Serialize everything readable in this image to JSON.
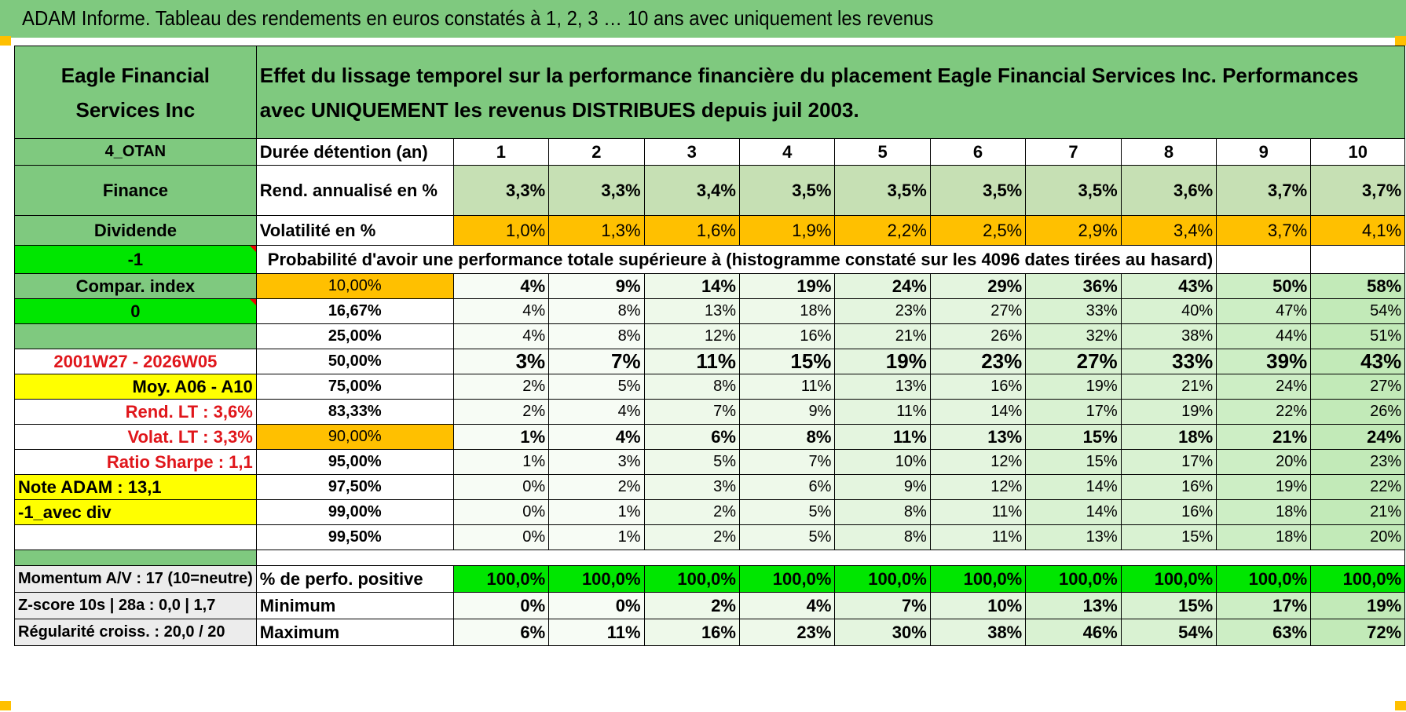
{
  "header": {
    "title": "ADAM Informe. Tableau des rendements en euros constatés à 1, 2, 3 … 10 ans avec uniquement les revenus"
  },
  "company": {
    "name": "Eagle Financial Services Inc"
  },
  "description": "Effet du lissage temporel sur la performance financière du placement Eagle Financial Services Inc. Performances avec UNIQUEMENT les revenus DISTRIBUES depuis juil 2003.",
  "side": {
    "code": "4_OTAN",
    "sector": "Finance",
    "type": "Dividende",
    "minus_one": "-1",
    "compar_index": "Compar. index",
    "zero": "0",
    "period": "2001W27 - 2026W05",
    "moy": "Moy. A06 - A10",
    "rend_lt": "Rend. LT :   3,6%",
    "volat_lt": "Volat. LT :   3,3%",
    "sharpe": "Ratio Sharpe :    1,1",
    "note": "Note ADAM : 13,1",
    "avec_div": "-1_avec div"
  },
  "rows": {
    "duree_label": "Durée détention (an)",
    "years": [
      "1",
      "2",
      "3",
      "4",
      "5",
      "6",
      "7",
      "8",
      "9",
      "10"
    ],
    "rend_label": "Rend. annualisé en %",
    "rend": [
      "3,3%",
      "3,3%",
      "3,4%",
      "3,5%",
      "3,5%",
      "3,5%",
      "3,5%",
      "3,6%",
      "3,7%",
      "3,7%"
    ],
    "vol_label": "Volatilité en %",
    "vol": [
      "1,0%",
      "1,3%",
      "1,6%",
      "1,9%",
      "2,2%",
      "2,5%",
      "2,9%",
      "3,4%",
      "3,7%",
      "4,1%"
    ],
    "prob_label": "Probabilité d'avoir une performance totale supérieure à (histogramme constaté sur les 4096 dates tirées au hasard)"
  },
  "prob": [
    {
      "pct": "10,00%",
      "v": [
        "4%",
        "9%",
        "14%",
        "19%",
        "24%",
        "29%",
        "36%",
        "43%",
        "50%",
        "58%"
      ]
    },
    {
      "pct": "16,67%",
      "v": [
        "4%",
        "8%",
        "13%",
        "18%",
        "23%",
        "27%",
        "33%",
        "40%",
        "47%",
        "54%"
      ]
    },
    {
      "pct": "25,00%",
      "v": [
        "4%",
        "8%",
        "12%",
        "16%",
        "21%",
        "26%",
        "32%",
        "38%",
        "44%",
        "51%"
      ]
    },
    {
      "pct": "50,00%",
      "v": [
        "3%",
        "7%",
        "11%",
        "15%",
        "19%",
        "23%",
        "27%",
        "33%",
        "39%",
        "43%"
      ]
    },
    {
      "pct": "75,00%",
      "v": [
        "2%",
        "5%",
        "8%",
        "11%",
        "13%",
        "16%",
        "19%",
        "21%",
        "24%",
        "27%"
      ]
    },
    {
      "pct": "83,33%",
      "v": [
        "2%",
        "4%",
        "7%",
        "9%",
        "11%",
        "14%",
        "17%",
        "19%",
        "22%",
        "26%"
      ]
    },
    {
      "pct": "90,00%",
      "v": [
        "1%",
        "4%",
        "6%",
        "8%",
        "11%",
        "13%",
        "15%",
        "18%",
        "21%",
        "24%"
      ]
    },
    {
      "pct": "95,00%",
      "v": [
        "1%",
        "3%",
        "5%",
        "7%",
        "10%",
        "12%",
        "15%",
        "17%",
        "20%",
        "23%"
      ]
    },
    {
      "pct": "97,50%",
      "v": [
        "0%",
        "2%",
        "3%",
        "6%",
        "9%",
        "12%",
        "14%",
        "16%",
        "19%",
        "22%"
      ]
    },
    {
      "pct": "99,00%",
      "v": [
        "0%",
        "1%",
        "2%",
        "5%",
        "8%",
        "11%",
        "14%",
        "16%",
        "18%",
        "21%"
      ]
    },
    {
      "pct": "99,50%",
      "v": [
        "0%",
        "1%",
        "2%",
        "5%",
        "8%",
        "11%",
        "13%",
        "15%",
        "18%",
        "20%"
      ]
    }
  ],
  "bottom": [
    {
      "side": "Momentum A/V : 17 (10=neutre)",
      "label": "% de perfo. positive",
      "v": [
        "100,0%",
        "100,0%",
        "100,0%",
        "100,0%",
        "100,0%",
        "100,0%",
        "100,0%",
        "100,0%",
        "100,0%",
        "100,0%"
      ]
    },
    {
      "side": "Z-score 10s | 28a : 0,0 | 1,7",
      "label": "Minimum",
      "v": [
        "0%",
        "0%",
        "2%",
        "4%",
        "7%",
        "10%",
        "13%",
        "15%",
        "17%",
        "19%"
      ]
    },
    {
      "side": "Régularité croiss. : 20,0 / 20",
      "label": "Maximum",
      "v": [
        "6%",
        "11%",
        "16%",
        "23%",
        "30%",
        "38%",
        "46%",
        "54%",
        "63%",
        "72%"
      ]
    }
  ]
}
